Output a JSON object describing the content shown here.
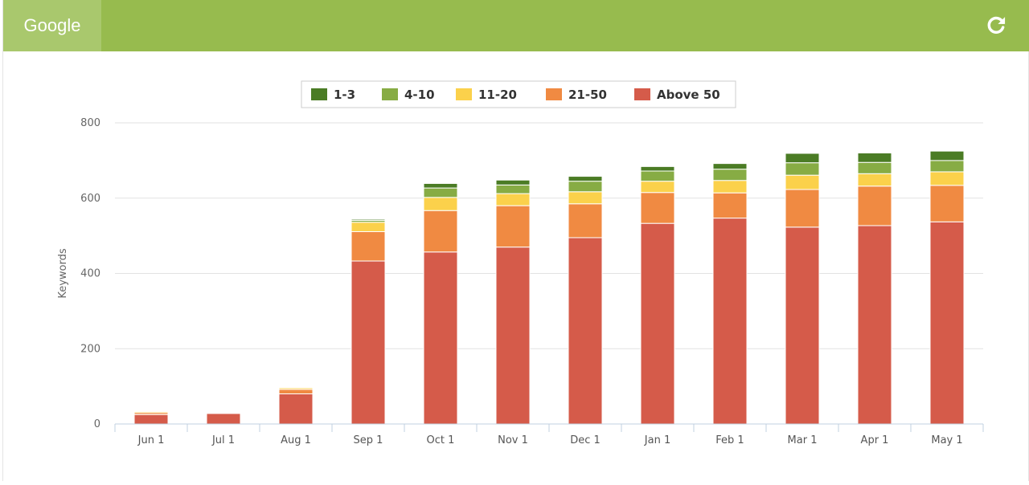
{
  "header": {
    "tab_label": "Google",
    "refresh_icon": "refresh-icon",
    "color": "#97bb4e",
    "tab_color": "#a9c86d"
  },
  "chart_data": {
    "type": "bar",
    "stacked": true,
    "title": "",
    "xlabel": "",
    "ylabel": "Keywords",
    "ylim": [
      0,
      800
    ],
    "yticks": [
      0,
      200,
      400,
      600,
      800
    ],
    "grid": true,
    "legend": "top-center",
    "categories": [
      "Jun 1",
      "Jul 1",
      "Aug 1",
      "Sep 1",
      "Oct 1",
      "Nov 1",
      "Dec 1",
      "Jan 1",
      "Feb 1",
      "Mar 1",
      "Apr 1",
      "May 1"
    ],
    "series": [
      {
        "name": "Above 50",
        "color": "#d55b4a",
        "values": [
          25,
          28,
          80,
          433,
          457,
          470,
          495,
          533,
          547,
          523,
          527,
          537
        ]
      },
      {
        "name": "21-50",
        "color": "#f08a42",
        "values": [
          5,
          2,
          12,
          78,
          110,
          110,
          90,
          82,
          67,
          100,
          105,
          97
        ]
      },
      {
        "name": "11-20",
        "color": "#fbd14b",
        "values": [
          3,
          0,
          4,
          25,
          35,
          32,
          32,
          30,
          33,
          38,
          33,
          36
        ]
      },
      {
        "name": "4-10",
        "color": "#87ac44",
        "values": [
          0,
          0,
          2,
          5,
          25,
          23,
          28,
          27,
          30,
          33,
          30,
          30
        ]
      },
      {
        "name": "1-3",
        "color": "#4b7c25",
        "values": [
          0,
          0,
          0,
          3,
          12,
          13,
          13,
          12,
          15,
          25,
          25,
          25
        ]
      }
    ],
    "legend_order": [
      "1-3",
      "4-10",
      "11-20",
      "21-50",
      "Above 50"
    ]
  }
}
